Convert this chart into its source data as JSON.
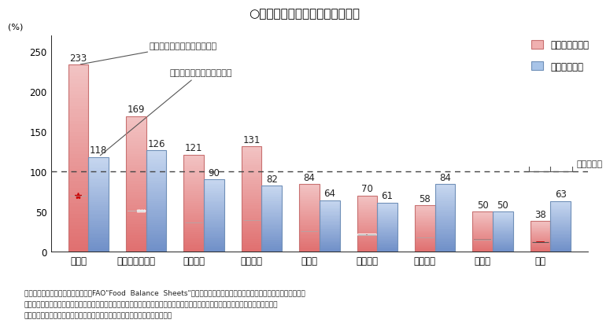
{
  "title": "○　我が国と諸外国の食料自給率",
  "categories": [
    "カナダ",
    "オーストラリア",
    "アメリカ",
    "フランス",
    "ドイツ",
    "イギリス",
    "イタリア",
    "スイス",
    "日本"
  ],
  "calorie_values": [
    233,
    169,
    121,
    131,
    84,
    70,
    58,
    50,
    38
  ],
  "production_values": [
    118,
    126,
    90,
    82,
    64,
    61,
    84,
    50,
    63
  ],
  "calorie_color_top": "#f2c4c4",
  "calorie_color_bottom": "#e07070",
  "calorie_edge_color": "#c87070",
  "production_color_top": "#c8d8f0",
  "production_color_bottom": "#7090c8",
  "production_edge_color": "#7090b8",
  "bar_width": 0.35,
  "ylim": [
    0,
    270
  ],
  "yticks": [
    0,
    50,
    100,
    150,
    200,
    250
  ],
  "ylabel": "(%)",
  "legend_calorie": "カロリーベース",
  "legend_production": "生産額ベース",
  "annotation_calorie": "カロリーベース（令和元年）",
  "annotation_production": "生産額ベース（令和元年）",
  "annotation_year": "令和３年度",
  "note1": "資料：農林水産省「食料需給表」、FAO\"Food  Balance  Sheets\"等を基に農林水産省で試算。（アルコール類等は含まない）",
  "note2": "注１：数値は暦年（日本のみ年度）。スイス（カロリーベース）及びイギリス（生産額ベース）については、各政府の公表値を掛載。",
  "note3": "注２：畜産物及び加工品については、輸入飼料及び輸入原料を考慮して計算。",
  "background_color": "#ffffff"
}
